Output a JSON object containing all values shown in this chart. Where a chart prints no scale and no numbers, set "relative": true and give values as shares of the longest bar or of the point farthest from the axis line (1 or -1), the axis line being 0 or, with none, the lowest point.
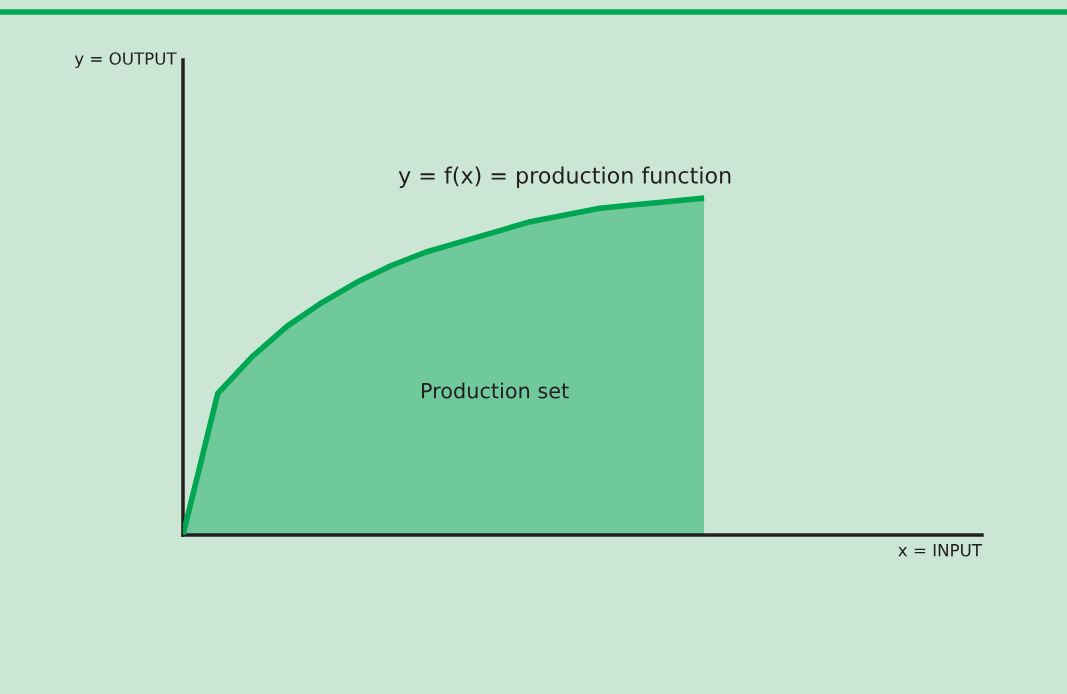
{
  "chart_data": {
    "type": "area",
    "relative": true,
    "xlabel": "x = INPUT",
    "annotations": [
      "y = OUTPUT",
      "Production set"
    ],
    "categories": [
      null,
      null,
      null,
      null,
      null,
      null,
      null,
      null,
      null,
      null,
      null,
      null,
      null,
      null,
      null,
      null,
      null,
      null,
      null,
      null,
      null,
      null,
      null,
      null
    ],
    "series": [
      {
        "name": "y = f(x) = production function",
        "color": "#00a651",
        "values": [
          0,
          0.42,
          0.53,
          0.62,
          0.69,
          0.75,
          0.8,
          0.84,
          0.87,
          0.9,
          0.93,
          0.95,
          0.97,
          0.98,
          0.99,
          1.0,
          null,
          null,
          null,
          null,
          null,
          null,
          null,
          null
        ]
      }
    ]
  }
}
